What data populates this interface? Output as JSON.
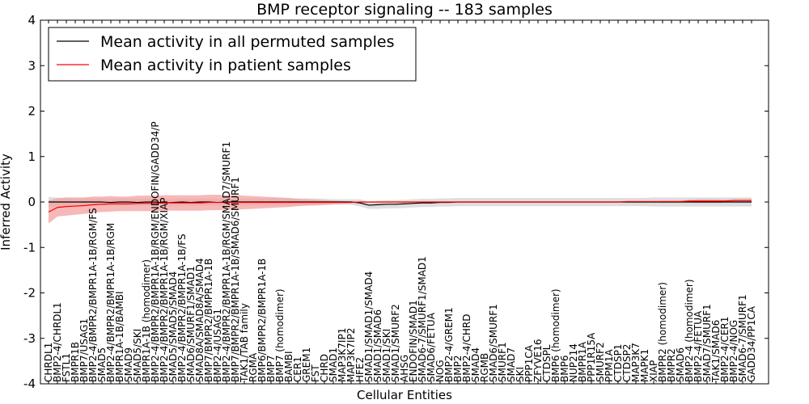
{
  "chart_data": {
    "type": "line",
    "title": "BMP receptor signaling -- 183 samples",
    "xlabel": "Cellular Entities",
    "ylabel": "Inferred Activity",
    "ylim": [
      -4,
      4
    ],
    "yticks": [
      -4,
      -3,
      -2,
      -1,
      0,
      1,
      2,
      3,
      4
    ],
    "legend_position": "top-left",
    "categories": [
      "CHRDL1",
      "BMP2-4/CHRDL1",
      "FSTL1",
      "BMPR1B",
      "BMP7/USAG1",
      "BMP2-4/BMPR2/BMPR1A-1B/RGM/FS",
      "SMAD5",
      "BMP2-4/BMPR2/BMPR1A-1B/RGM",
      "BMPR1A-1B/BAMBI",
      "SMAD9",
      "SMAD5/SKI",
      "BMPR1A-1B (homodimer)",
      "BMP2-4/BMPR2/BMPR1A-1B/RGM/ENDOFIN/GADD34/P",
      "BMP2-4/BMPR2/BMPR1A-1B/RGM/XIAP",
      "SMAD5/SMAD5/SMAD4",
      "BMP2-4/BMPR2/BMPR1A-1B/FS",
      "SMAD6/SMURF1/SMAD1",
      "SMAD8A/SMAD8A/SMAD4",
      "BMP7/BMPR2/BMPR1A-1B",
      "BMP2-4/USAG1",
      "BMP2-4/BMPR2/BMPR1A-1B/RGM/SMAD7/SMURF1",
      "BMP7/BMPR2/BMPR1A-1B/SMAD6/SMURF1",
      "TAK1/TAB family",
      "RGMA",
      "BMP6/BMPR2/BMPR1A-1B",
      "BMP7",
      "BMP7 (homodimer)",
      "BAMBI",
      "CER1",
      "GREM1",
      "FST",
      "CHRD",
      "SMAD1",
      "MAP3K7IP1",
      "MAP3K7IP2",
      "HFE2",
      "SMAD1/SMAD1/SMAD4",
      "SMAD1/SMAD6",
      "SMAD1/SKI",
      "SMAD1/SMURF2",
      "AHSG",
      "ENDOFIN/SMAD1",
      "SMAD6-7/SMURF1/SMAD1",
      "SMAD6/FETUA",
      "NOG",
      "BMP2-4/GREM1",
      "BMP2",
      "BMP2-4/CHRD",
      "SMAD4",
      "RGMB",
      "SMAD6/SMURF1",
      "SMURF1",
      "SMAD7",
      "SKI",
      "PPP1CA",
      "ZFYVE16",
      "CTDSPL",
      "BMP6 (homodimer)",
      "BMP6",
      "NUP214",
      "BMPR1A",
      "PPP1R15A",
      "SMURF2",
      "PPM1A",
      "CTDSP1",
      "CTDSP2",
      "MAP3K7",
      "MAPK1",
      "XIAP",
      "BMPR2 (homodimer)",
      "BMPR2",
      "SMAD6",
      "BMP2-4 (homodimer)",
      "BMP2-4/FETUA",
      "SMAD7/SMURF1",
      "TAK1/SMAD6",
      "BMP2-4/CER1",
      "BMP2-4/NOG",
      "SMAD6-7/SMURF1",
      "GADD34/PP1CA"
    ],
    "series": [
      {
        "name": "Mean activity in all permuted samples",
        "color": "#000000",
        "band_color": "#c8c8c8",
        "values": [
          0,
          0,
          0,
          0,
          0,
          0,
          0,
          -0.01,
          0,
          0,
          -0.01,
          0,
          0,
          -0.02,
          -0.01,
          0,
          -0.01,
          0,
          0,
          -0.01,
          0,
          0,
          0,
          0,
          0,
          0,
          0,
          0,
          0,
          0,
          0,
          0,
          0,
          0,
          0,
          -0.02,
          -0.07,
          -0.06,
          -0.05,
          -0.05,
          -0.04,
          -0.03,
          -0.02,
          -0.02,
          -0.01,
          -0.01,
          0,
          0,
          0,
          0,
          0,
          0,
          0,
          0,
          0,
          0,
          0,
          0,
          0,
          0,
          0,
          0,
          0,
          0,
          0,
          0,
          0,
          0,
          0,
          0,
          0,
          0,
          0,
          0,
          0,
          0,
          0,
          0,
          0,
          0
        ],
        "spread": [
          0.11,
          0.1,
          0.09,
          0.08,
          0.08,
          0.08,
          0.08,
          0.08,
          0.08,
          0.08,
          0.08,
          0.08,
          0.08,
          0.08,
          0.08,
          0.08,
          0.08,
          0.08,
          0.08,
          0.08,
          0.08,
          0.08,
          0.08,
          0.08,
          0.08,
          0.08,
          0.08,
          0.08,
          0.08,
          0.08,
          0.08,
          0.07,
          0.06,
          0.06,
          0.06,
          0.08,
          0.08,
          0.09,
          0.09,
          0.09,
          0.09,
          0.09,
          0.09,
          0.09,
          0.09,
          0.09,
          0.09,
          0.09,
          0.09,
          0.09,
          0.09,
          0.09,
          0.09,
          0.09,
          0.09,
          0.09,
          0.09,
          0.09,
          0.09,
          0.09,
          0.09,
          0.09,
          0.09,
          0.09,
          0.09,
          0.09,
          0.09,
          0.09,
          0.1,
          0.1,
          0.1,
          0.1,
          0.1,
          0.1,
          0.1,
          0.1,
          0.1,
          0.1,
          0.1,
          0.1
        ]
      },
      {
        "name": "Mean activity in patient samples",
        "color": "#ff0000",
        "band_color": "#f4a0a0",
        "values": [
          -0.22,
          -0.12,
          -0.1,
          -0.09,
          -0.08,
          -0.06,
          -0.05,
          -0.04,
          -0.04,
          -0.04,
          -0.03,
          -0.03,
          -0.03,
          -0.02,
          -0.02,
          -0.02,
          -0.02,
          -0.02,
          -0.01,
          -0.01,
          -0.01,
          -0.01,
          -0.01,
          -0.01,
          -0.01,
          -0.01,
          -0.01,
          -0.01,
          -0.01,
          -0.01,
          -0.01,
          -0.01,
          -0.01,
          -0.01,
          -0.01,
          0,
          0,
          0,
          0,
          0,
          0,
          0,
          0,
          0,
          0,
          0,
          0,
          0,
          0,
          0,
          0,
          0,
          0,
          0,
          0,
          0,
          0,
          0,
          0,
          0,
          0,
          0,
          0,
          0,
          0,
          0.01,
          0.01,
          0.01,
          0.01,
          0.01,
          0.01,
          0.01,
          0.02,
          0.02,
          0.02,
          0.02,
          0.02,
          0.03,
          0.03,
          0.03
        ],
        "spread": [
          0.25,
          0.2,
          0.2,
          0.19,
          0.18,
          0.18,
          0.17,
          0.17,
          0.16,
          0.16,
          0.17,
          0.17,
          0.17,
          0.17,
          0.17,
          0.17,
          0.17,
          0.17,
          0.17,
          0.17,
          0.16,
          0.16,
          0.15,
          0.14,
          0.13,
          0.12,
          0.11,
          0.1,
          0.08,
          0.07,
          0.06,
          0.05,
          0.04,
          0.03,
          0.02,
          0.01,
          0.01,
          0.01,
          0.01,
          0.01,
          0.01,
          0.01,
          0.01,
          0.01,
          0.01,
          0.01,
          0.01,
          0.01,
          0.01,
          0.01,
          0.01,
          0.01,
          0.01,
          0.01,
          0.01,
          0.01,
          0.01,
          0.01,
          0.01,
          0.01,
          0.01,
          0.01,
          0.01,
          0.01,
          0.01,
          0.01,
          0.01,
          0.01,
          0.01,
          0.02,
          0.02,
          0.02,
          0.03,
          0.04,
          0.04,
          0.04,
          0.03,
          0.04,
          0.04,
          0.04
        ]
      }
    ]
  }
}
